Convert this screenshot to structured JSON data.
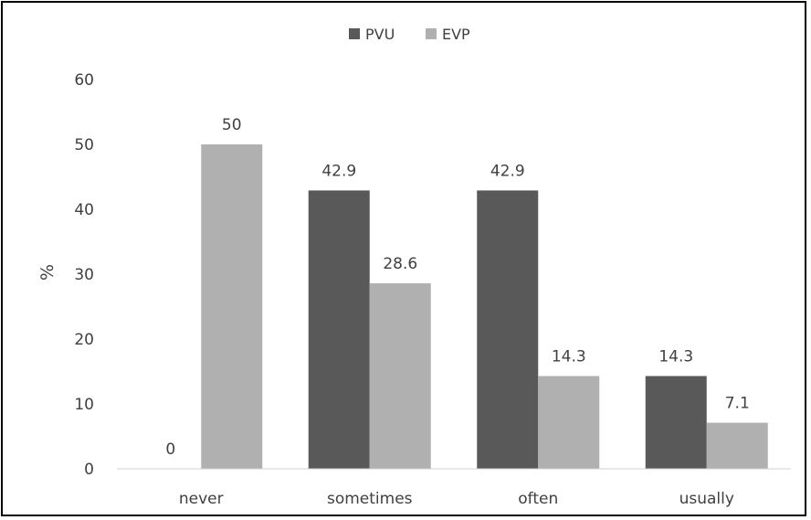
{
  "chart_data": {
    "type": "bar",
    "categories": [
      "never",
      "sometimes",
      "often",
      "usually"
    ],
    "series": [
      {
        "name": "PVU",
        "values": [
          0,
          42.9,
          42.9,
          14.3
        ],
        "color": "#595959"
      },
      {
        "name": "EVP",
        "values": [
          50,
          28.6,
          14.3,
          7.1
        ],
        "color": "#b0b0b0"
      }
    ],
    "data_labels": [
      [
        "0",
        "42.9",
        "42.9",
        "14.3"
      ],
      [
        "50",
        "28.6",
        "14.3",
        "7.1"
      ]
    ],
    "title": "",
    "xlabel": "",
    "ylabel": "%",
    "ylim": [
      0,
      60
    ],
    "yticks": [
      0,
      10,
      20,
      30,
      40,
      50,
      60
    ],
    "grid": false,
    "legend_position": "top-center"
  }
}
